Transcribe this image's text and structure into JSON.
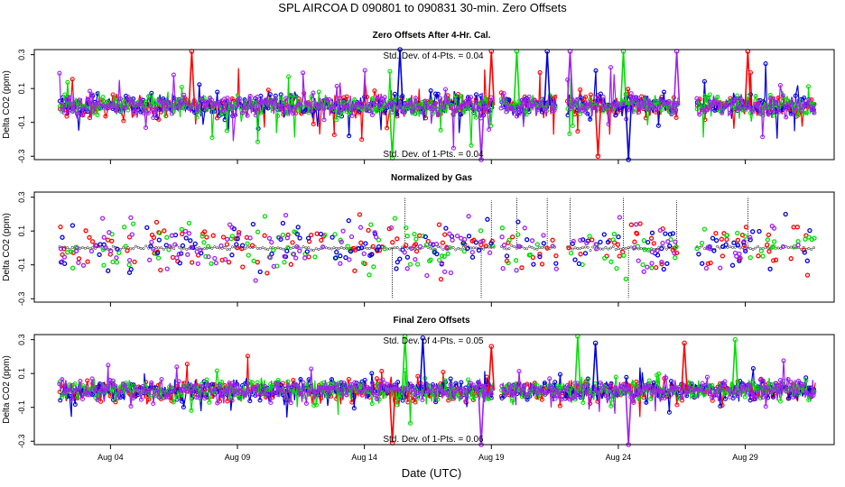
{
  "chart_data": {
    "type": "scatter",
    "title": "SPL   AIRCOA D   090801 to 090831   30-min. Zero Offsets",
    "xlabel": "Date (UTC)",
    "x_unit": "day of August 2009",
    "xlim": [
      1,
      32.5
    ],
    "x_ticks": [
      {
        "x": 4,
        "label": "Aug 04"
      },
      {
        "x": 9,
        "label": "Aug 09"
      },
      {
        "x": 14,
        "label": "Aug 14"
      },
      {
        "x": 19,
        "label": "Aug 19"
      },
      {
        "x": 24,
        "label": "Aug 24"
      },
      {
        "x": 29,
        "label": "Aug 29"
      }
    ],
    "colors": {
      "series1": "#ff0000",
      "series2": "#00dd00",
      "series3": "#0000dd",
      "series4": "#a020f0",
      "flag": "#000000"
    },
    "panels": [
      {
        "title": "Zero Offsets After 4-Hr. Cal.",
        "ylabel": "Delta CO2 (ppm)",
        "ylim": [
          -0.32,
          0.33
        ],
        "y_ticks": [
          "0.3",
          "0.1",
          "-0.1",
          "-0.3"
        ],
        "y_tick_values": [
          0.3,
          0.1,
          -0.1,
          -0.3
        ],
        "annotations": [
          "Std. Dev. of 4-Pts. =  0.04",
          "Std. Dev. of 1-Pts. =  0.04"
        ],
        "x_range": [
          2,
          31.8
        ],
        "gaps": [
          [
            19.1,
            19.4
          ],
          [
            21.6,
            22.0
          ],
          [
            26.4,
            27.1
          ]
        ],
        "spikes": [
          [
            7.2,
            0.32
          ],
          [
            15.1,
            -0.31
          ],
          [
            15.4,
            0.33
          ],
          [
            18.6,
            -0.32
          ],
          [
            19.0,
            0.32
          ],
          [
            20.0,
            0.32
          ],
          [
            21.2,
            0.32
          ],
          [
            22.1,
            0.32
          ],
          [
            23.2,
            -0.3
          ],
          [
            24.2,
            0.32
          ],
          [
            24.4,
            -0.32
          ],
          [
            26.3,
            0.32
          ],
          [
            29.1,
            0.32
          ]
        ],
        "sd": 0.045,
        "amp_outliers": 0.22,
        "mode": "lines"
      },
      {
        "title": "Normalized by Gas",
        "ylabel": "Delta CO2 (ppm)",
        "ylim": [
          -0.32,
          0.33
        ],
        "y_ticks": [
          "0.3",
          "0.1",
          "-0.1",
          "-0.3"
        ],
        "y_tick_values": [
          0.3,
          0.1,
          -0.1,
          -0.3
        ],
        "annotations": [],
        "x_range": [
          2,
          31.8
        ],
        "gaps": [
          [
            19.1,
            19.4
          ],
          [
            21.6,
            22.0
          ],
          [
            26.4,
            27.1
          ]
        ],
        "spikes": [
          [
            15.1,
            -0.3
          ],
          [
            15.6,
            0.3
          ],
          [
            18.6,
            -0.3
          ],
          [
            19.0,
            0.28
          ],
          [
            20.0,
            0.3
          ],
          [
            21.2,
            0.3
          ],
          [
            22.1,
            0.3
          ],
          [
            24.2,
            0.3
          ],
          [
            24.4,
            -0.3
          ],
          [
            26.3,
            0.28
          ],
          [
            29.1,
            0.3
          ]
        ],
        "sd": 0.09,
        "amp_outliers": 0.2,
        "mode": "points"
      },
      {
        "title": "Final Zero Offsets",
        "ylabel": "Delta CO2 (ppm)",
        "ylim": [
          -0.32,
          0.33
        ],
        "y_ticks": [
          "0.3",
          "0.1",
          "-0.1",
          "-0.3"
        ],
        "y_tick_values": [
          0.3,
          0.1,
          -0.1,
          -0.3
        ],
        "annotations": [
          "Std. Dev. of 4-Pts. =  0.05",
          "Std. Dev. of 1-Pts. =  0.06"
        ],
        "x_range": [
          2,
          31.8
        ],
        "gaps": [
          [
            19.1,
            19.4
          ]
        ],
        "spikes": [
          [
            15.1,
            -0.31
          ],
          [
            15.6,
            0.32
          ],
          [
            16.3,
            0.31
          ],
          [
            18.6,
            -0.32
          ],
          [
            19.0,
            0.26
          ],
          [
            22.4,
            0.32
          ],
          [
            23.1,
            0.28
          ],
          [
            24.4,
            -0.32
          ],
          [
            26.6,
            0.28
          ],
          [
            28.6,
            0.3
          ]
        ],
        "sd": 0.045,
        "amp_outliers": 0.15,
        "mode": "lines"
      }
    ]
  }
}
